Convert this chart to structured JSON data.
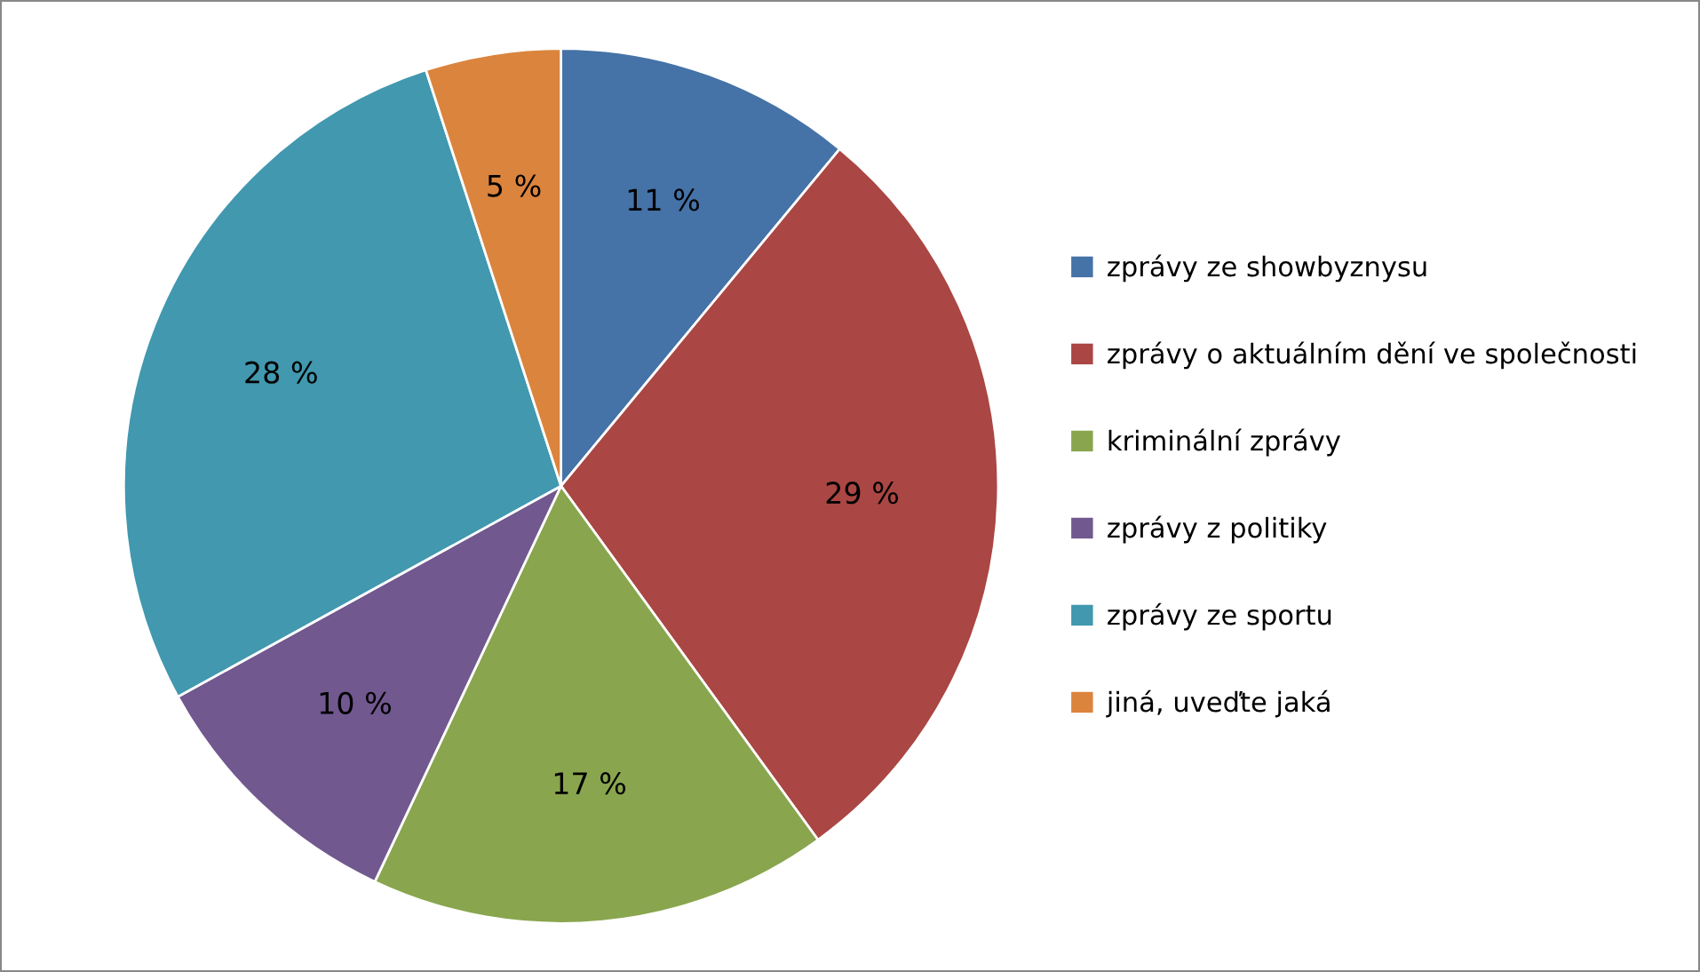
{
  "chart_data": {
    "type": "pie",
    "categories": [
      "zprávy ze showbyznysu",
      "zprávy o aktuálním dění ve společnosti",
      "kriminální zprávy",
      "zprávy z politiky",
      "zprávy ze sportu",
      "jiná, uveďte jaká"
    ],
    "values": [
      11,
      29,
      17,
      10,
      28,
      5
    ],
    "value_labels": [
      "11 %",
      "29 %",
      "17 %",
      "10 %",
      "28 %",
      "5 %"
    ],
    "colors": [
      "#4572a7",
      "#aa4643",
      "#89a54e",
      "#71588f",
      "#4198af",
      "#db843d"
    ],
    "legend": "right"
  }
}
